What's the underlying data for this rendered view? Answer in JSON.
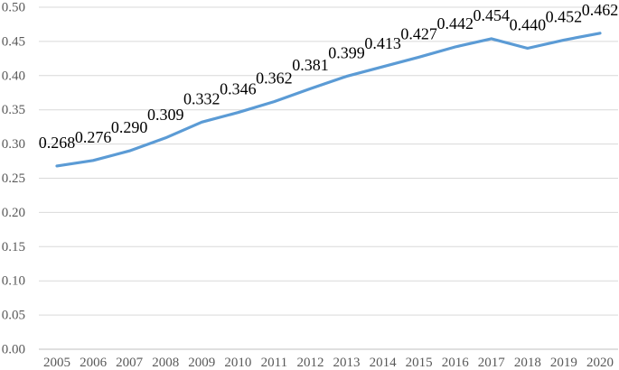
{
  "chart_data": {
    "type": "line",
    "title": "",
    "xlabel": "",
    "ylabel": "",
    "categories": [
      "2005",
      "2006",
      "2007",
      "2008",
      "2009",
      "2010",
      "2011",
      "2012",
      "2013",
      "2014",
      "2015",
      "2016",
      "2017",
      "2018",
      "2019",
      "2020"
    ],
    "series": [
      {
        "name": "series-1",
        "values": [
          0.268,
          0.276,
          0.29,
          0.309,
          0.332,
          0.346,
          0.362,
          0.381,
          0.399,
          0.413,
          0.427,
          0.442,
          0.454,
          0.44,
          0.452,
          0.462
        ],
        "data_labels": [
          "0.268",
          "0.276",
          "0.290",
          "0.309",
          "0.332",
          "0.346",
          "0.362",
          "0.381",
          "0.399",
          "0.413",
          "0.427",
          "0.442",
          "0.454",
          "0.440",
          "0.452",
          "0.462"
        ]
      }
    ],
    "ylim": [
      0.0,
      0.5
    ],
    "ytick_step": 0.05,
    "ytick_labels": [
      "0.00",
      "0.05",
      "0.10",
      "0.15",
      "0.20",
      "0.25",
      "0.30",
      "0.35",
      "0.40",
      "0.45",
      "0.50"
    ],
    "grid": true,
    "legend_position": "none",
    "markers": false,
    "colors": {
      "line": "#5B9BD5",
      "gridline": "#D9D9D9",
      "axis_line": "#BFBFBF",
      "tick_label": "#595959",
      "data_label": "#000000",
      "background": "#FFFFFF"
    }
  }
}
